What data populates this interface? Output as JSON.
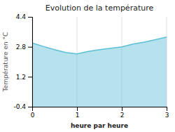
{
  "chart_data": {
    "type": "area",
    "title": "Evolution de la température",
    "xlabel": "heure par heure",
    "ylabel": "Température en °C",
    "x": [
      0,
      0.25,
      0.5,
      0.75,
      1.0,
      1.25,
      1.5,
      1.75,
      2.0,
      2.25,
      2.5,
      2.75,
      3.0
    ],
    "values": [
      3.0,
      2.82,
      2.65,
      2.5,
      2.42,
      2.55,
      2.65,
      2.72,
      2.8,
      2.95,
      3.05,
      3.18,
      3.32
    ],
    "color": "#5bbfd6",
    "xlim": [
      0,
      3
    ],
    "ylim": [
      -0.4,
      4.4
    ],
    "xticks": [
      0,
      1,
      2,
      3
    ],
    "yticks": [
      -0.4,
      1.2,
      2.8,
      4.4
    ],
    "grid": "x"
  }
}
